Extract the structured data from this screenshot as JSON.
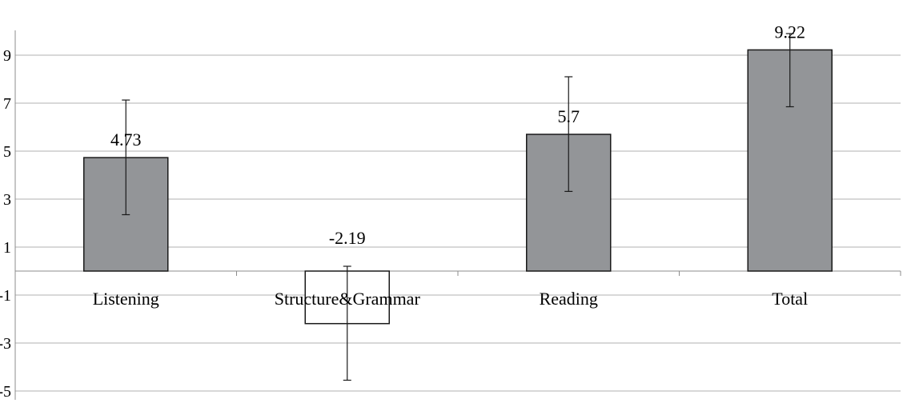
{
  "chart_data": {
    "type": "bar",
    "categories": [
      "Listening",
      "Structure&Grammar",
      "Reading",
      "Total"
    ],
    "values": [
      4.73,
      -2.19,
      5.7,
      9.22
    ],
    "error_bars": [
      [
        2.35,
        7.13
      ],
      [
        -4.55,
        0.2
      ],
      [
        3.32,
        8.1
      ],
      [
        6.85,
        9.9
      ]
    ],
    "data_labels": [
      "4.73",
      "-2.19",
      "5.7",
      "9.22"
    ],
    "yticks": [
      9,
      7,
      5,
      3,
      1,
      -1,
      -3,
      -5
    ],
    "ylim": [
      -5,
      10
    ],
    "grid": true,
    "colors": {
      "positive_bar": "#939598",
      "negative_bar": "#ffffff",
      "bar_stroke": "#1a1a1a",
      "gridline": "#b0b0b0",
      "axis": "#8c8c8c"
    }
  }
}
